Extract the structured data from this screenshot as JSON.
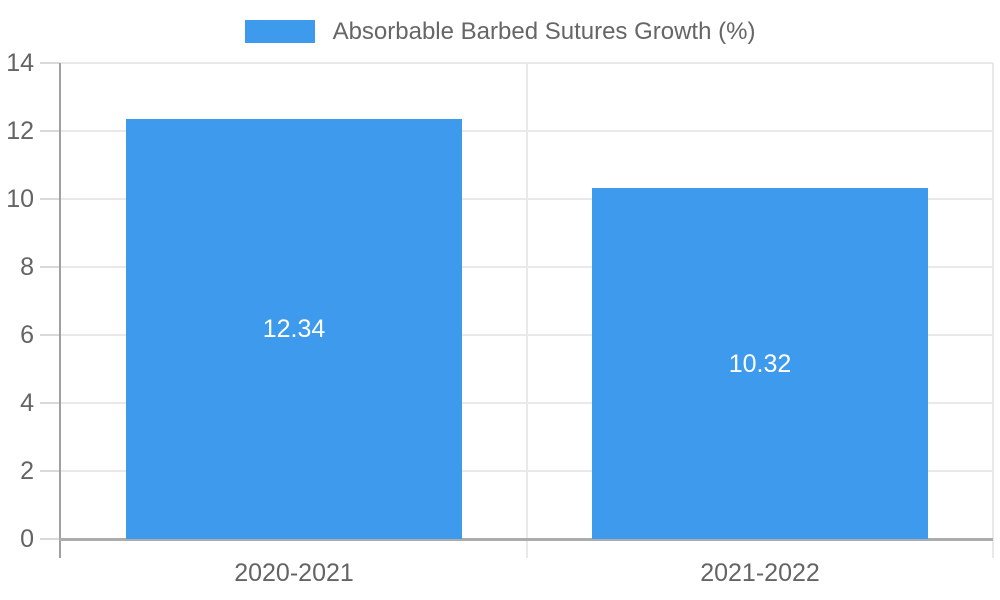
{
  "chart_data": {
    "type": "bar",
    "title": "",
    "legend": "Absorbable Barbed Sutures Growth (%)",
    "legend_position": "top",
    "categories": [
      "2020-2021",
      "2021-2022"
    ],
    "series": [
      {
        "name": "Absorbable Barbed Sutures Growth (%)",
        "values": [
          12.34,
          10.32
        ]
      }
    ],
    "data_labels": [
      "12.34",
      "10.32"
    ],
    "xlabel": "",
    "ylabel": "",
    "ylim": [
      0,
      14
    ],
    "yticks": [
      0,
      2,
      4,
      6,
      8,
      10,
      12,
      14
    ],
    "grid": true
  },
  "colors": {
    "bar": "#3D9AEC",
    "grid": "#E9E9E9",
    "axis_line": "#A0A0A0",
    "bottom_axis_line": "#ACACAC",
    "tick_mark": "#D9D9D9",
    "tick_label": "#646464",
    "legend_label": "#666666",
    "data_label": "#FFFFFF",
    "background": "#FFFFFF"
  }
}
